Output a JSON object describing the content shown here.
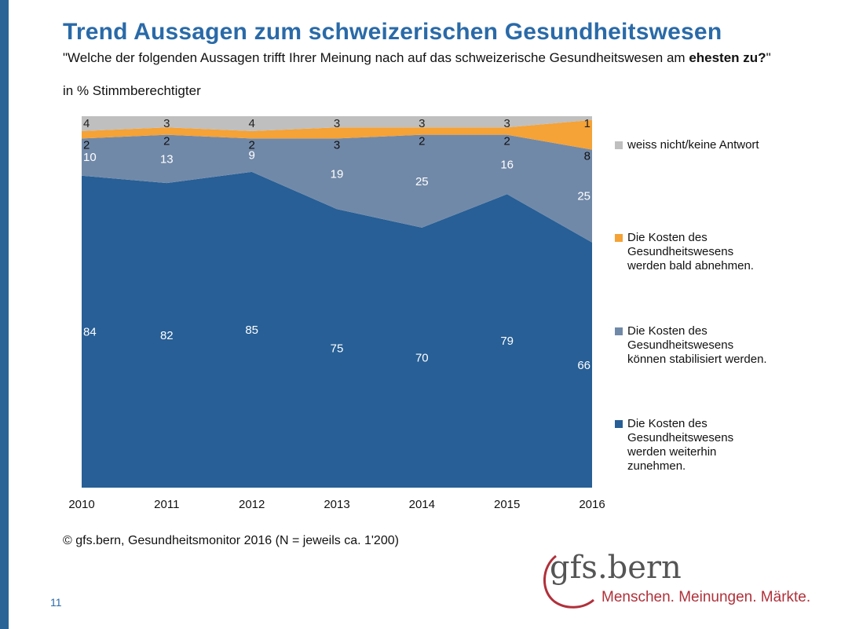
{
  "title": "Trend Aussagen zum schweizerischen Gesundheitswesen",
  "question_part1": "\"Welche der folgenden Aussagen trifft Ihrer Meinung nach auf das schweizerische Gesundheitswesen am ",
  "question_bold": "ehesten zu?",
  "question_part2": "\"",
  "basis": "in % Stimmberechtigter",
  "source": "© gfs.bern, Gesundheitsmonitor 2016 (N = jeweils ca. 1'200)",
  "page_number": "11",
  "logo": {
    "brand": "gfs.bern",
    "tagline": "Menschen. Meinungen. Märkte."
  },
  "chart_data": {
    "type": "area",
    "stacked": true,
    "percent_stacked": true,
    "title": "",
    "xlabel": "",
    "ylabel": "",
    "ylim": [
      0,
      100
    ],
    "grid": false,
    "legend_position": "right",
    "x": [
      "2010",
      "2011",
      "2012",
      "2013",
      "2014",
      "2015",
      "2016"
    ],
    "series": [
      {
        "name": "Die Kosten des Gesundheitswesens werden weiterhin zunehmen.",
        "values": [
          84,
          82,
          85,
          75,
          70,
          79,
          66
        ],
        "color": "#275f96"
      },
      {
        "name": "Die Kosten des Gesundheitswesens können stabilisiert werden.",
        "values": [
          10,
          13,
          9,
          19,
          25,
          16,
          25
        ],
        "color": "#7189a8"
      },
      {
        "name": "Die Kosten des Gesundheitswesens werden bald abnehmen.",
        "values": [
          2,
          2,
          2,
          3,
          2,
          2,
          8
        ],
        "color": "#f5a236"
      },
      {
        "name": "weiss nicht/keine Antwort",
        "values": [
          4,
          3,
          4,
          3,
          3,
          3,
          1
        ],
        "color": "#bfbfbf"
      }
    ],
    "legend_order": [
      3,
      2,
      1,
      0
    ],
    "label_colors": [
      "#ffffff",
      "#ffffff",
      "#111111",
      "#222222"
    ]
  }
}
